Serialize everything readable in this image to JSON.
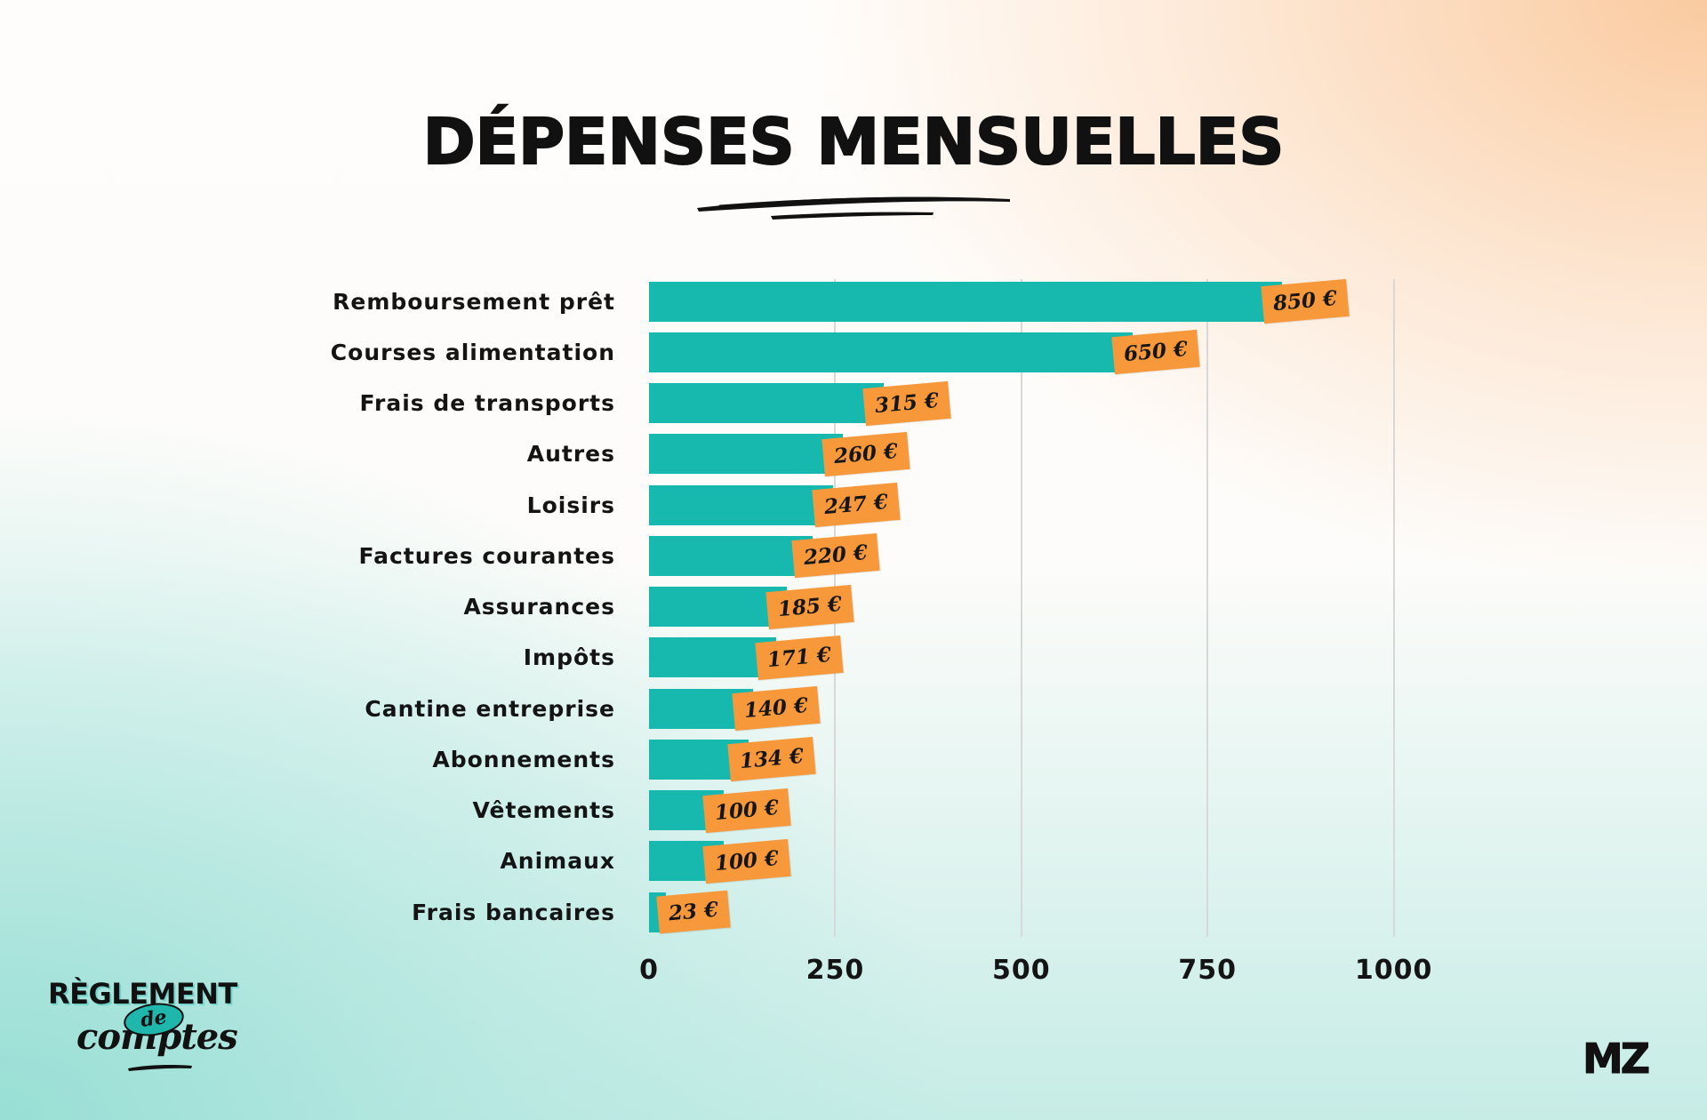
{
  "chart_data": {
    "type": "bar",
    "orientation": "horizontal",
    "title": "DÉPENSES MENSUELLES",
    "categories": [
      "Remboursement prêt",
      "Courses alimentation",
      "Frais de transports",
      "Autres",
      "Loisirs",
      "Factures courantes",
      "Assurances",
      "Impôts",
      "Cantine entreprise",
      "Abonnements",
      "Vêtements",
      "Animaux",
      "Frais bancaires"
    ],
    "values": [
      850,
      650,
      315,
      260,
      247,
      220,
      185,
      171,
      140,
      134,
      100,
      100,
      23
    ],
    "value_labels": [
      "850 €",
      "650 €",
      "315 €",
      "260 €",
      "247 €",
      "220 €",
      "185 €",
      "171 €",
      "140 €",
      "134 €",
      "100 €",
      "100 €",
      "23 €"
    ],
    "x_ticks": [
      0,
      250,
      500,
      750,
      1000
    ],
    "xlim": [
      0,
      1000
    ],
    "grid": "vertical",
    "legend": "none",
    "bar_color": "#17B8AE",
    "label_color": "#F7993A"
  },
  "logo_left": {
    "title": "RÈGLEMENT",
    "badge": "de",
    "subtitle": "comptes"
  },
  "logo_right": {
    "text": "MZ"
  },
  "theme": {
    "text": "#111111",
    "background_top_right": "#FBD3AC",
    "background_bottom_left": "#A9E4DC"
  }
}
